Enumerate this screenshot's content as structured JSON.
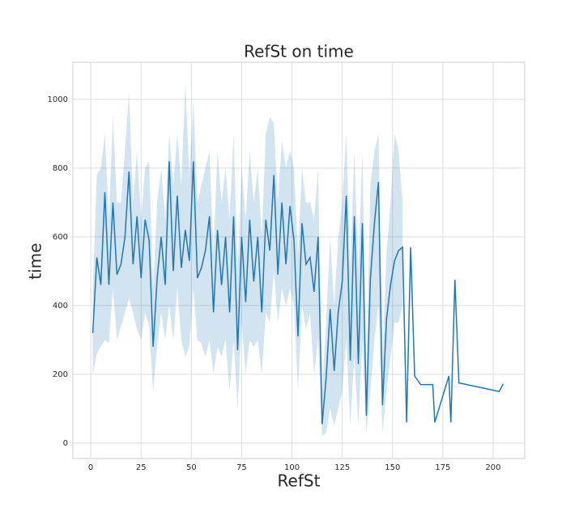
{
  "chart_data": {
    "type": "line",
    "title": "RefSt on time",
    "x_label": "RefSt",
    "y_label": "time",
    "x": [
      1,
      3,
      5,
      7,
      9,
      11,
      13,
      15,
      17,
      19,
      21,
      23,
      25,
      27,
      29,
      31,
      33,
      35,
      37,
      39,
      41,
      43,
      45,
      47,
      49,
      51,
      53,
      55,
      57,
      59,
      61,
      63,
      65,
      67,
      69,
      71,
      73,
      75,
      77,
      79,
      81,
      83,
      85,
      87,
      89,
      91,
      93,
      95,
      97,
      99,
      101,
      103,
      105,
      107,
      109,
      111,
      113,
      115,
      117,
      119,
      121,
      123,
      125,
      127,
      129,
      131,
      133,
      135,
      137,
      139,
      141,
      143,
      145,
      147,
      149,
      151,
      153,
      155,
      157,
      159,
      161,
      164,
      170,
      171,
      178,
      179,
      181,
      183,
      203,
      205
    ],
    "series": [
      {
        "color": "#1f77b4",
        "band_color": "#1f77b4",
        "values": [
          320,
          540,
          460,
          730,
          460,
          700,
          490,
          520,
          600,
          790,
          520,
          660,
          480,
          650,
          590,
          280,
          480,
          600,
          460,
          820,
          500,
          720,
          510,
          620,
          530,
          820,
          480,
          510,
          560,
          660,
          380,
          620,
          460,
          600,
          380,
          660,
          270,
          600,
          410,
          650,
          470,
          600,
          380,
          650,
          560,
          780,
          490,
          700,
          520,
          690,
          590,
          310,
          640,
          520,
          540,
          440,
          600,
          55,
          190,
          390,
          210,
          380,
          470,
          720,
          240,
          660,
          230,
          640,
          80,
          480,
          640,
          760,
          110,
          360,
          460,
          530,
          560,
          570,
          60,
          570,
          195,
          170,
          170,
          60,
          195,
          60,
          475,
          175,
          150,
          172
        ],
        "lower": [
          200,
          260,
          280,
          300,
          290,
          450,
          300,
          340,
          380,
          420,
          380,
          330,
          300,
          380,
          340,
          150,
          280,
          380,
          300,
          400,
          300,
          450,
          300,
          250,
          280,
          450,
          300,
          290,
          250,
          300,
          200,
          280,
          250,
          300,
          150,
          300,
          100,
          350,
          200,
          300,
          280,
          300,
          200,
          380,
          350,
          500,
          350,
          450,
          400,
          450,
          400,
          150,
          400,
          330,
          380,
          200,
          300,
          20,
          30,
          100,
          50,
          100,
          150,
          300,
          50,
          250,
          50,
          300,
          30,
          150,
          300,
          400,
          30,
          150,
          250,
          350,
          350,
          400,
          null,
          null,
          null,
          null,
          null,
          null,
          null,
          null,
          null,
          null,
          null,
          null
        ],
        "upper": [
          450,
          780,
          800,
          900,
          650,
          950,
          700,
          700,
          850,
          1020,
          700,
          850,
          650,
          800,
          820,
          450,
          700,
          800,
          650,
          900,
          750,
          900,
          750,
          1050,
          780,
          1000,
          700,
          750,
          800,
          850,
          550,
          850,
          700,
          800,
          650,
          900,
          500,
          800,
          650,
          850,
          700,
          800,
          600,
          900,
          950,
          930,
          700,
          880,
          800,
          850,
          800,
          550,
          800,
          700,
          700,
          650,
          800,
          150,
          350,
          600,
          400,
          600,
          700,
          900,
          500,
          850,
          500,
          850,
          200,
          750,
          850,
          900,
          250,
          550,
          700,
          900,
          850,
          700,
          null,
          null,
          null,
          null,
          null,
          null,
          null,
          null,
          null,
          null,
          null,
          null
        ]
      }
    ],
    "xlim": [
      -8.9,
      215.7
    ],
    "ylim": [
      -45,
      1108
    ],
    "xticks": [
      0,
      25,
      50,
      75,
      100,
      125,
      150,
      175,
      200
    ],
    "yticks": [
      0,
      200,
      400,
      600,
      800,
      1000
    ],
    "grid": true
  }
}
